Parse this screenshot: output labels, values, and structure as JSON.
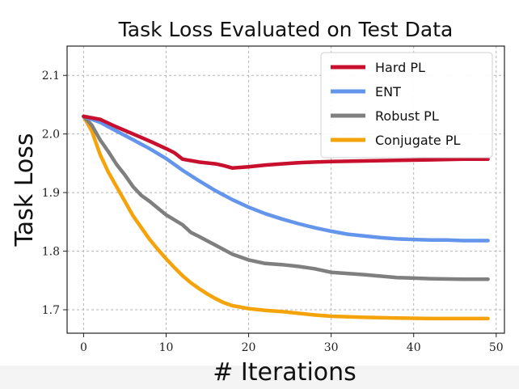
{
  "chart_data": {
    "type": "line",
    "title": "Task Loss Evaluated on Test Data",
    "xlabel": "# Iterations",
    "ylabel": "Task Loss",
    "xlim": [
      -2,
      51
    ],
    "ylim": [
      1.66,
      2.15
    ],
    "xticks": [
      0,
      10,
      20,
      30,
      40,
      50
    ],
    "yticks": [
      1.7,
      1.8,
      1.9,
      2.0,
      2.1
    ],
    "ytick_labels": [
      "1.7",
      "1.8",
      "1.9",
      "2.0",
      "2.1"
    ],
    "grid": true,
    "legend_position": "top-right",
    "series": [
      {
        "name": "Hard PL",
        "color": "#c8102e",
        "x": [
          0,
          2,
          4,
          6,
          8,
          10,
          11,
          12,
          14,
          16,
          17,
          18,
          20,
          22,
          24,
          26,
          28,
          30,
          34,
          38,
          42,
          46,
          49
        ],
        "y": [
          2.03,
          2.025,
          2.012,
          2.0,
          1.988,
          1.975,
          1.968,
          1.957,
          1.952,
          1.949,
          1.946,
          1.942,
          1.944,
          1.947,
          1.949,
          1.951,
          1.952,
          1.953,
          1.954,
          1.955,
          1.956,
          1.957,
          1.957
        ]
      },
      {
        "name": "ENT",
        "color": "#6495ed",
        "x": [
          0,
          2,
          4,
          6,
          8,
          10,
          12,
          14,
          16,
          18,
          20,
          22,
          24,
          26,
          28,
          30,
          32,
          34,
          36,
          38,
          40,
          42,
          44,
          46,
          49
        ],
        "y": [
          2.03,
          2.02,
          2.005,
          1.99,
          1.975,
          1.958,
          1.938,
          1.92,
          1.903,
          1.888,
          1.875,
          1.864,
          1.855,
          1.847,
          1.84,
          1.834,
          1.829,
          1.826,
          1.823,
          1.821,
          1.82,
          1.819,
          1.819,
          1.818,
          1.818
        ]
      },
      {
        "name": "Robust PL",
        "color": "#7f7f7f",
        "x": [
          0,
          1,
          2,
          3,
          4,
          5,
          6,
          7,
          8,
          10,
          12,
          13,
          14,
          16,
          18,
          20,
          22,
          24,
          26,
          28,
          30,
          34,
          38,
          42,
          46,
          49
        ],
        "y": [
          2.03,
          2.015,
          1.99,
          1.97,
          1.948,
          1.93,
          1.91,
          1.895,
          1.885,
          1.862,
          1.845,
          1.832,
          1.825,
          1.81,
          1.795,
          1.785,
          1.779,
          1.777,
          1.774,
          1.77,
          1.764,
          1.76,
          1.755,
          1.753,
          1.752,
          1.752
        ]
      },
      {
        "name": "Conjugate PL",
        "color": "#f5a30a",
        "x": [
          0,
          1,
          2,
          3,
          4,
          5,
          6,
          7,
          8,
          9,
          10,
          11,
          12,
          13,
          14,
          15,
          16,
          17,
          18,
          20,
          22,
          24,
          26,
          28,
          30,
          34,
          38,
          42,
          46,
          49
        ],
        "y": [
          2.03,
          2.005,
          1.965,
          1.935,
          1.91,
          1.885,
          1.86,
          1.84,
          1.82,
          1.803,
          1.787,
          1.772,
          1.758,
          1.746,
          1.736,
          1.727,
          1.719,
          1.712,
          1.707,
          1.702,
          1.699,
          1.697,
          1.694,
          1.691,
          1.689,
          1.687,
          1.686,
          1.685,
          1.685,
          1.685
        ]
      }
    ]
  }
}
